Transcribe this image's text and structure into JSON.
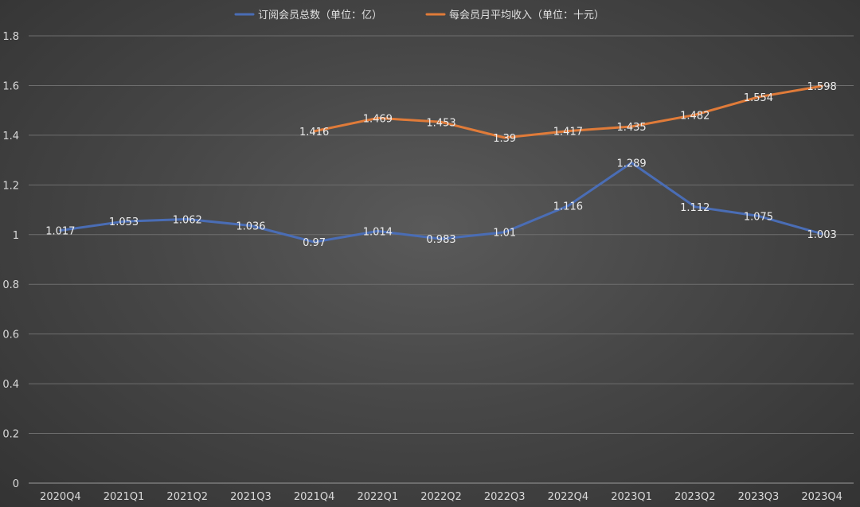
{
  "chart_data": {
    "type": "line",
    "categories": [
      "2020Q4",
      "2021Q1",
      "2021Q2",
      "2021Q3",
      "2021Q4",
      "2022Q1",
      "2022Q2",
      "2022Q3",
      "2022Q4",
      "2023Q1",
      "2023Q2",
      "2023Q3",
      "2023Q4"
    ],
    "series": [
      {
        "name": "订阅会员总数（单位：亿）",
        "color": "#4a6db5",
        "values": [
          1.017,
          1.053,
          1.062,
          1.036,
          0.97,
          1.014,
          0.983,
          1.01,
          1.116,
          1.289,
          1.112,
          1.075,
          1.003
        ],
        "labels": [
          "1.017",
          "1.053",
          "1.062",
          "1.036",
          "0.97",
          "1.014",
          "0.983",
          "1.01",
          "1.116",
          "1.289",
          "1.112",
          "1.075",
          "1.003"
        ]
      },
      {
        "name": "每会员月平均收入（单位：十元）",
        "color": "#e07b39",
        "values": [
          null,
          null,
          null,
          null,
          1.416,
          1.469,
          1.453,
          1.39,
          1.417,
          1.435,
          1.482,
          1.554,
          1.598
        ],
        "labels": [
          "",
          "",
          "",
          "",
          "1.416",
          "1.469",
          "1.453",
          "1.39",
          "1.417",
          "1.435",
          "1.482",
          "1.554",
          "1.598"
        ]
      }
    ],
    "ylim": [
      0,
      1.8
    ],
    "yticks": [
      0,
      0.2,
      0.4,
      0.6,
      0.8,
      1,
      1.2,
      1.4,
      1.6,
      1.8
    ],
    "ytick_labels": [
      "0",
      "0.2",
      "0.4",
      "0.6",
      "0.8",
      "1",
      "1.2",
      "1.4",
      "1.6",
      "1.8"
    ],
    "title": "",
    "xlabel": "",
    "ylabel": "",
    "grid": true,
    "legend_position": "top-center"
  }
}
